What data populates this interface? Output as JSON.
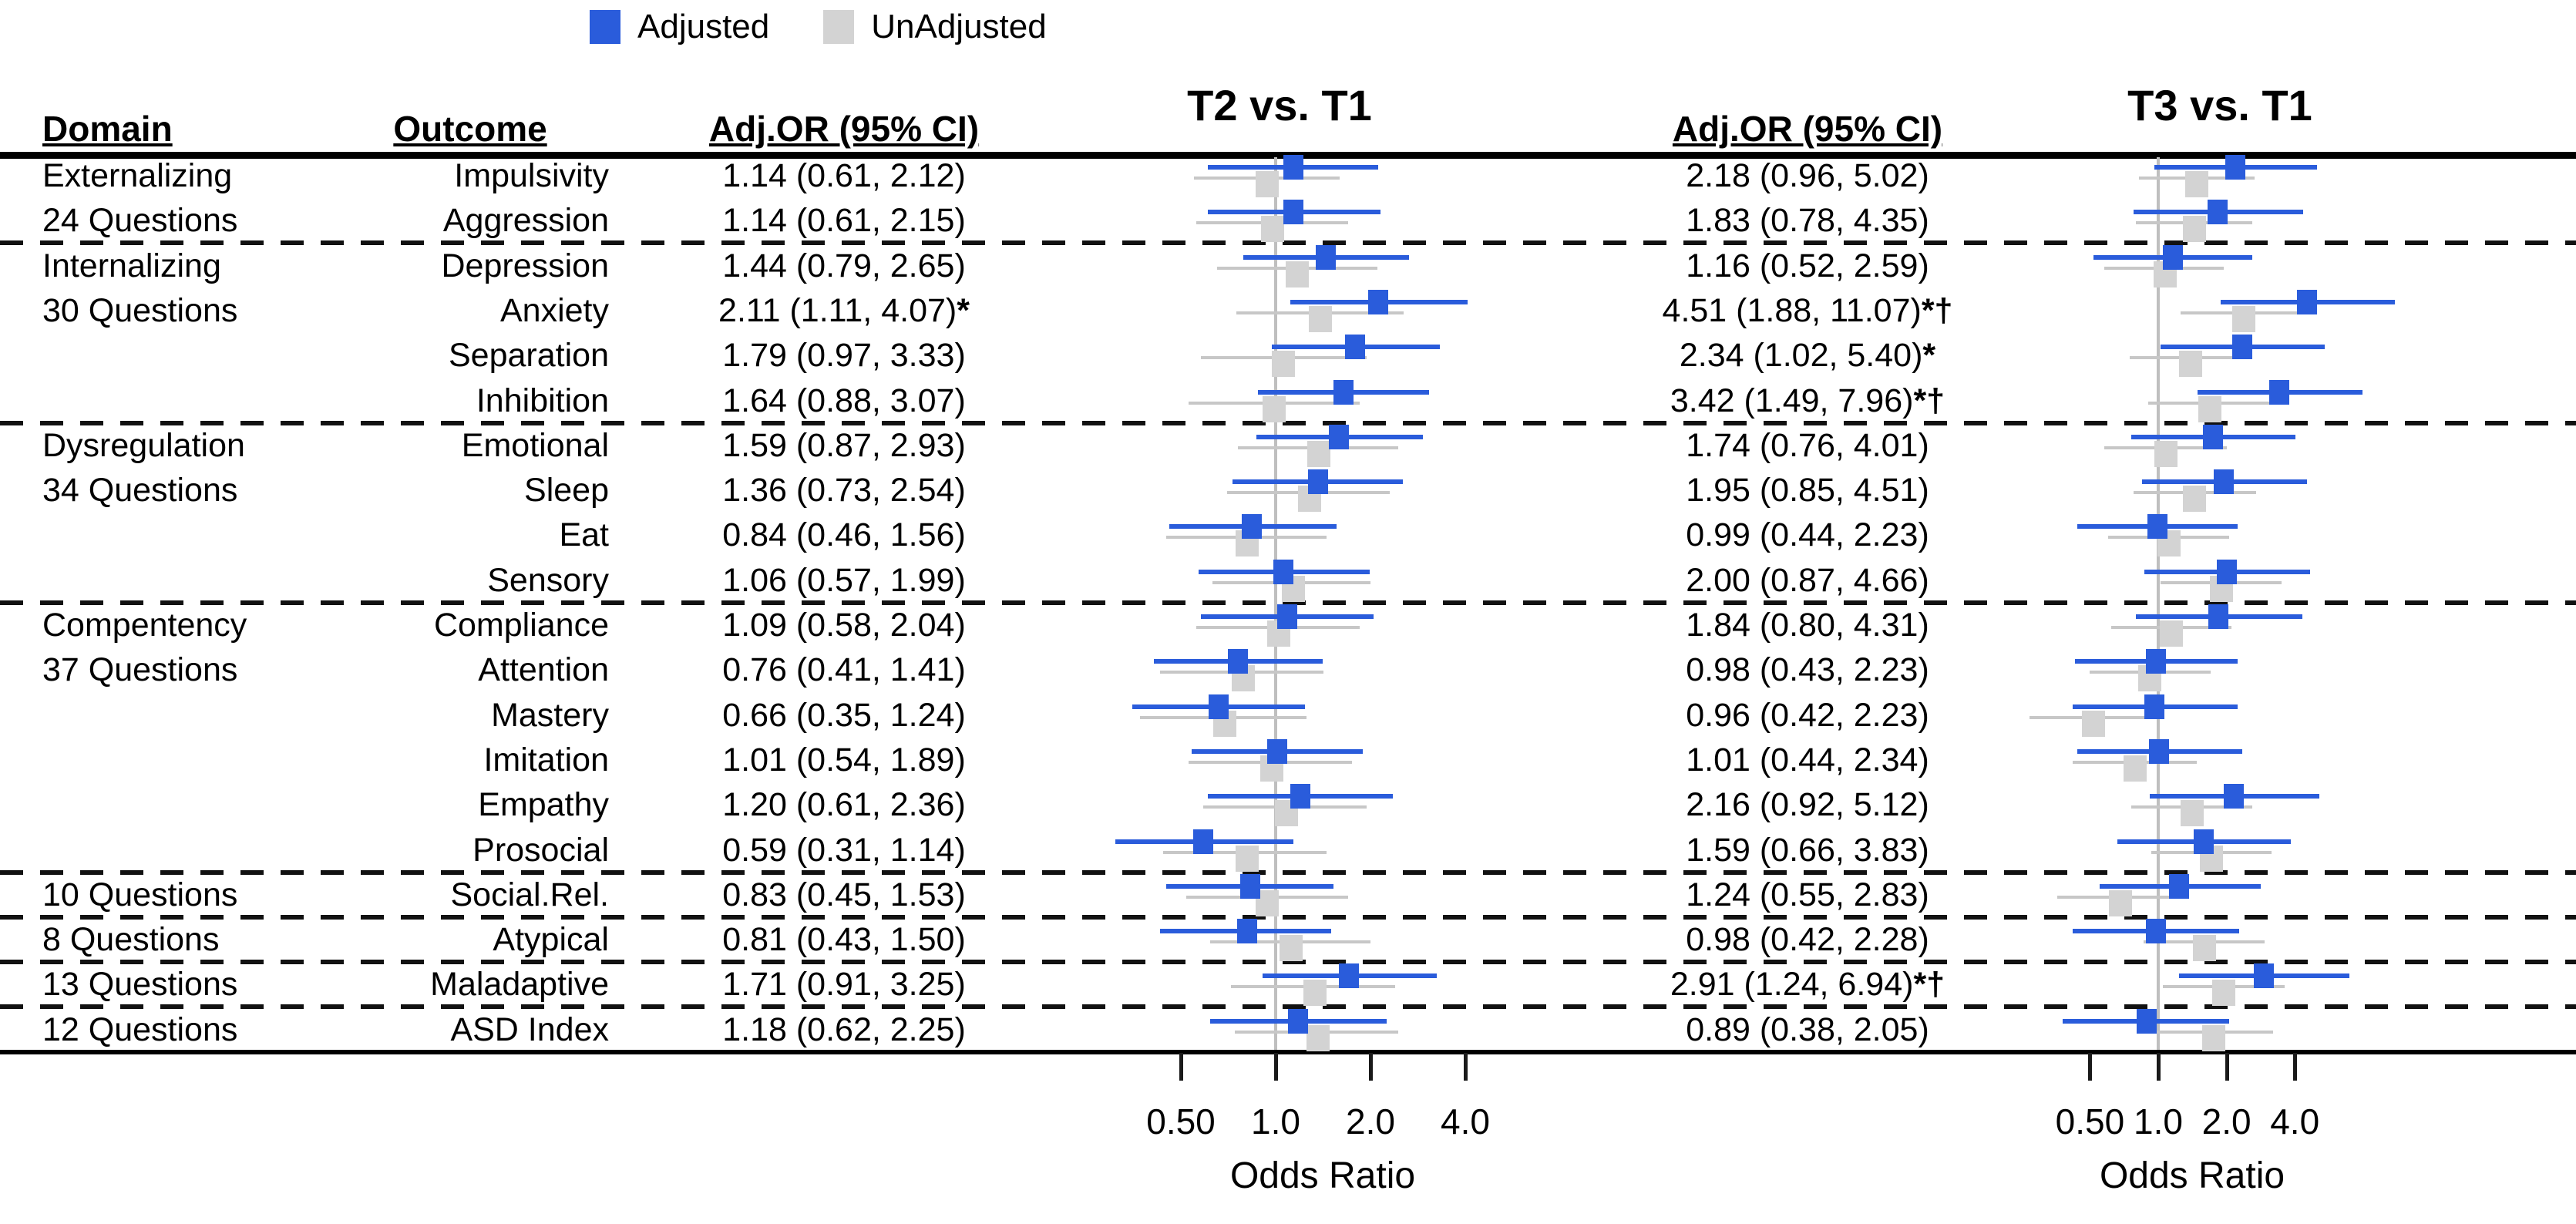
{
  "legend": {
    "adjusted": "Adjusted",
    "unadjusted": "UnAdjusted"
  },
  "headers": {
    "domain": "Domain",
    "outcome": "Outcome",
    "adj_or_t2": "Adj.OR (95% CI)",
    "panel_t2": "T2 vs. T1",
    "adj_or_t3": "Adj.OR (95% CI)",
    "panel_t3": "T3 vs. T1"
  },
  "axis": {
    "label": "Odds Ratio",
    "ticks": [
      "0.50",
      "1.0",
      "2.0",
      "4.0"
    ],
    "tick_values": [
      0.5,
      1.0,
      2.0,
      4.0
    ],
    "scale": "log2",
    "reference_line": 1.0
  },
  "colors": {
    "adjusted": "#2a5cdb",
    "unadjusted_box": "#d3d3d3",
    "unadjusted_line": "#c7c7c7",
    "reference_line": "#bfbfbf",
    "text": "#000000"
  },
  "chart_data": {
    "type": "forest",
    "panels": [
      "T2 vs. T1",
      "T3 vs. T1"
    ],
    "separators_after_rows": [
      1,
      5,
      9,
      15,
      16,
      17,
      18
    ],
    "rows": [
      {
        "domain": "Externalizing",
        "outcome": "Impulsivity",
        "t2": {
          "label": "1.14 (0.61, 2.12)",
          "sig": "",
          "est": 1.14,
          "lo": 0.61,
          "hi": 2.12,
          "unadj": {
            "est": 0.94,
            "lo": 0.55,
            "hi": 1.6
          }
        },
        "t3": {
          "label": "2.18 (0.96, 5.02)",
          "sig": "",
          "est": 2.18,
          "lo": 0.96,
          "hi": 5.02,
          "unadj": {
            "est": 1.48,
            "lo": 0.82,
            "hi": 2.65
          }
        }
      },
      {
        "domain": "24 Questions",
        "outcome": "Aggression",
        "t2": {
          "label": "1.14 (0.61, 2.15)",
          "sig": "",
          "est": 1.14,
          "lo": 0.61,
          "hi": 2.15,
          "unadj": {
            "est": 0.98,
            "lo": 0.56,
            "hi": 1.7
          }
        },
        "t3": {
          "label": "1.83 (0.78, 4.35)",
          "sig": "",
          "est": 1.83,
          "lo": 0.78,
          "hi": 4.35,
          "unadj": {
            "est": 1.45,
            "lo": 0.8,
            "hi": 2.6
          }
        }
      },
      {
        "domain": "Internalizing",
        "outcome": "Depression",
        "t2": {
          "label": "1.44 (0.79, 2.65)",
          "sig": "",
          "est": 1.44,
          "lo": 0.79,
          "hi": 2.65,
          "unadj": {
            "est": 1.17,
            "lo": 0.65,
            "hi": 2.1
          }
        },
        "t3": {
          "label": "1.16 (0.52, 2.59)",
          "sig": "",
          "est": 1.16,
          "lo": 0.52,
          "hi": 2.59,
          "unadj": {
            "est": 1.07,
            "lo": 0.58,
            "hi": 1.95
          }
        }
      },
      {
        "domain": "30 Questions",
        "outcome": "Anxiety",
        "t2": {
          "label": "2.11 (1.11, 4.07)",
          "sig": "*",
          "est": 2.11,
          "lo": 1.11,
          "hi": 4.07,
          "unadj": {
            "est": 1.39,
            "lo": 0.75,
            "hi": 2.55
          }
        },
        "t3": {
          "label": "4.51 (1.88, 11.07)",
          "sig": "*†",
          "est": 4.51,
          "lo": 1.88,
          "hi": 11.07,
          "unadj": {
            "est": 2.39,
            "lo": 1.25,
            "hi": 4.55
          }
        }
      },
      {
        "domain": "",
        "outcome": "Separation",
        "t2": {
          "label": "1.79 (0.97, 3.33)",
          "sig": "",
          "est": 1.79,
          "lo": 0.97,
          "hi": 3.33,
          "unadj": {
            "est": 1.06,
            "lo": 0.58,
            "hi": 1.95
          }
        },
        "t3": {
          "label": "2.34 (1.02, 5.40)",
          "sig": "*",
          "est": 2.34,
          "lo": 1.02,
          "hi": 5.4,
          "unadj": {
            "est": 1.39,
            "lo": 0.75,
            "hi": 2.55
          }
        }
      },
      {
        "domain": "",
        "outcome": "Inhibition",
        "t2": {
          "label": "1.64 (0.88, 3.07)",
          "sig": "",
          "est": 1.64,
          "lo": 0.88,
          "hi": 3.07,
          "unadj": {
            "est": 0.99,
            "lo": 0.53,
            "hi": 1.85
          }
        },
        "t3": {
          "label": "3.42 (1.49, 7.96)",
          "sig": "*†",
          "est": 3.42,
          "lo": 1.49,
          "hi": 7.96,
          "unadj": {
            "est": 1.69,
            "lo": 0.9,
            "hi": 3.15
          }
        }
      },
      {
        "domain": "Dysregulation",
        "outcome": "Emotional",
        "t2": {
          "label": "1.59 (0.87, 2.93)",
          "sig": "",
          "est": 1.59,
          "lo": 0.87,
          "hi": 2.93,
          "unadj": {
            "est": 1.37,
            "lo": 0.76,
            "hi": 2.45
          }
        },
        "t3": {
          "label": "1.74 (0.76, 4.01)",
          "sig": "",
          "est": 1.74,
          "lo": 0.76,
          "hi": 4.01,
          "unadj": {
            "est": 1.08,
            "lo": 0.58,
            "hi": 2.0
          }
        }
      },
      {
        "domain": "34 Questions",
        "outcome": "Sleep",
        "t2": {
          "label": "1.36 (0.73, 2.54)",
          "sig": "",
          "est": 1.36,
          "lo": 0.73,
          "hi": 2.54,
          "unadj": {
            "est": 1.28,
            "lo": 0.7,
            "hi": 2.3
          }
        },
        "t3": {
          "label": "1.95 (0.85, 4.51)",
          "sig": "",
          "est": 1.95,
          "lo": 0.85,
          "hi": 4.51,
          "unadj": {
            "est": 1.45,
            "lo": 0.78,
            "hi": 2.7
          }
        }
      },
      {
        "domain": "",
        "outcome": "Eat",
        "t2": {
          "label": "0.84 (0.46, 1.56)",
          "sig": "",
          "est": 0.84,
          "lo": 0.46,
          "hi": 1.56,
          "unadj": {
            "est": 0.81,
            "lo": 0.45,
            "hi": 1.45
          }
        },
        "t3": {
          "label": "0.99 (0.44, 2.23)",
          "sig": "",
          "est": 0.99,
          "lo": 0.44,
          "hi": 2.23,
          "unadj": {
            "est": 1.12,
            "lo": 0.6,
            "hi": 2.05
          }
        }
      },
      {
        "domain": "",
        "outcome": "Sensory",
        "t2": {
          "label": "1.06 (0.57, 1.99)",
          "sig": "",
          "est": 1.06,
          "lo": 0.57,
          "hi": 1.99,
          "unadj": {
            "est": 1.14,
            "lo": 0.63,
            "hi": 2.0
          }
        },
        "t3": {
          "label": "2.00 (0.87, 4.66)",
          "sig": "",
          "est": 2.0,
          "lo": 0.87,
          "hi": 4.66,
          "unadj": {
            "est": 1.9,
            "lo": 1.02,
            "hi": 3.5
          }
        }
      },
      {
        "domain": "Compentency",
        "outcome": "Compliance",
        "t2": {
          "label": "1.09 (0.58, 2.04)",
          "sig": "",
          "est": 1.09,
          "lo": 0.58,
          "hi": 2.04,
          "unadj": {
            "est": 1.02,
            "lo": 0.56,
            "hi": 1.85
          }
        },
        "t3": {
          "label": "1.84 (0.80, 4.31)",
          "sig": "",
          "est": 1.84,
          "lo": 0.8,
          "hi": 4.31,
          "unadj": {
            "est": 1.14,
            "lo": 0.62,
            "hi": 2.1
          }
        }
      },
      {
        "domain": "37 Questions",
        "outcome": "Attention",
        "t2": {
          "label": "0.76 (0.41, 1.41)",
          "sig": "",
          "est": 0.76,
          "lo": 0.41,
          "hi": 1.41,
          "unadj": {
            "est": 0.79,
            "lo": 0.43,
            "hi": 1.42
          }
        },
        "t3": {
          "label": "0.98 (0.43, 2.23)",
          "sig": "",
          "est": 0.98,
          "lo": 0.43,
          "hi": 2.23,
          "unadj": {
            "est": 0.92,
            "lo": 0.5,
            "hi": 1.7
          }
        }
      },
      {
        "domain": "",
        "outcome": "Mastery",
        "t2": {
          "label": "0.66 (0.35, 1.24)",
          "sig": "",
          "est": 0.66,
          "lo": 0.35,
          "hi": 1.24,
          "unadj": {
            "est": 0.69,
            "lo": 0.37,
            "hi": 1.25
          }
        },
        "t3": {
          "label": "0.96 (0.42, 2.23)",
          "sig": "",
          "est": 0.96,
          "lo": 0.42,
          "hi": 2.23,
          "unadj": {
            "est": 0.52,
            "lo": 0.27,
            "hi": 1.0
          }
        }
      },
      {
        "domain": "",
        "outcome": "Imitation",
        "t2": {
          "label": "1.01 (0.54, 1.89)",
          "sig": "",
          "est": 1.01,
          "lo": 0.54,
          "hi": 1.89,
          "unadj": {
            "est": 0.97,
            "lo": 0.53,
            "hi": 1.75
          }
        },
        "t3": {
          "label": "1.01 (0.44, 2.34)",
          "sig": "",
          "est": 1.01,
          "lo": 0.44,
          "hi": 2.34,
          "unadj": {
            "est": 0.79,
            "lo": 0.42,
            "hi": 1.48
          }
        }
      },
      {
        "domain": "",
        "outcome": "Empathy",
        "t2": {
          "label": "1.20 (0.61, 2.36)",
          "sig": "",
          "est": 1.2,
          "lo": 0.61,
          "hi": 2.36,
          "unadj": {
            "est": 1.08,
            "lo": 0.59,
            "hi": 1.95
          }
        },
        "t3": {
          "label": "2.16 (0.92, 5.12)",
          "sig": "",
          "est": 2.16,
          "lo": 0.92,
          "hi": 5.12,
          "unadj": {
            "est": 1.41,
            "lo": 0.76,
            "hi": 2.6
          }
        }
      },
      {
        "domain": "",
        "outcome": "Prosocial",
        "t2": {
          "label": "0.59 (0.31, 1.14)",
          "sig": "",
          "est": 0.59,
          "lo": 0.31,
          "hi": 1.14,
          "unadj": {
            "est": 0.81,
            "lo": 0.44,
            "hi": 1.45
          }
        },
        "t3": {
          "label": "1.59 (0.66, 3.83)",
          "sig": "",
          "est": 1.59,
          "lo": 0.66,
          "hi": 3.83,
          "unadj": {
            "est": 1.71,
            "lo": 0.93,
            "hi": 3.15
          }
        }
      },
      {
        "domain": "10 Questions",
        "outcome": "Social.Rel.",
        "t2": {
          "label": "0.83 (0.45, 1.53)",
          "sig": "",
          "est": 0.83,
          "lo": 0.45,
          "hi": 1.53,
          "unadj": {
            "est": 0.94,
            "lo": 0.52,
            "hi": 1.7
          }
        },
        "t3": {
          "label": "1.24 (0.55, 2.83)",
          "sig": "",
          "est": 1.24,
          "lo": 0.55,
          "hi": 2.83,
          "unadj": {
            "est": 0.68,
            "lo": 0.36,
            "hi": 1.28
          }
        }
      },
      {
        "domain": "8 Questions",
        "outcome": "Atypical",
        "t2": {
          "label": "0.81 (0.43, 1.50)",
          "sig": "",
          "est": 0.81,
          "lo": 0.43,
          "hi": 1.5,
          "unadj": {
            "est": 1.12,
            "lo": 0.62,
            "hi": 2.0
          }
        },
        "t3": {
          "label": "0.98 (0.42, 2.28)",
          "sig": "",
          "est": 0.98,
          "lo": 0.42,
          "hi": 2.28,
          "unadj": {
            "est": 1.6,
            "lo": 0.86,
            "hi": 2.95
          }
        }
      },
      {
        "domain": "13 Questions",
        "outcome": "Maladaptive",
        "t2": {
          "label": "1.71 (0.91, 3.25)",
          "sig": "",
          "est": 1.71,
          "lo": 0.91,
          "hi": 3.25,
          "unadj": {
            "est": 1.33,
            "lo": 0.72,
            "hi": 2.4
          }
        },
        "t3": {
          "label": "2.91 (1.24, 6.94)",
          "sig": "*†",
          "est": 2.91,
          "lo": 1.24,
          "hi": 6.94,
          "unadj": {
            "est": 1.95,
            "lo": 1.05,
            "hi": 3.6
          }
        }
      },
      {
        "domain": "12 Questions",
        "outcome": "ASD Index",
        "t2": {
          "label": "1.18 (0.62, 2.25)",
          "sig": "",
          "est": 1.18,
          "lo": 0.62,
          "hi": 2.25,
          "unadj": {
            "est": 1.36,
            "lo": 0.74,
            "hi": 2.45
          }
        },
        "t3": {
          "label": "0.89 (0.38, 2.05)",
          "sig": "",
          "est": 0.89,
          "lo": 0.38,
          "hi": 2.05,
          "unadj": {
            "est": 1.75,
            "lo": 0.95,
            "hi": 3.2
          }
        }
      }
    ]
  }
}
